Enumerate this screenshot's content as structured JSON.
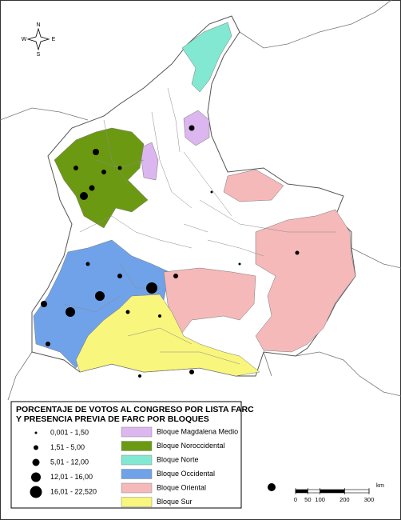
{
  "compass": {
    "north": "N",
    "south": "S",
    "east": "E",
    "west": "W"
  },
  "legend": {
    "title_lines": [
      "PORCENTAJE DE VOTOS AL CONGRESO POR LISTA FARC",
      "Y PRESENCIA PREVIA DE FARC POR BLOQUES"
    ],
    "vote_classes": [
      "0,001 - 1,50",
      "1,51 - 5,00",
      "5,01 - 12,00",
      "12,01 - 16,00",
      "16,01 - 22,520"
    ],
    "blocs": [
      {
        "name": "Bloque Magdalena Medio",
        "color": "#dcb6ef"
      },
      {
        "name": "Bloque Noroccidental",
        "color": "#6b9a12"
      },
      {
        "name": "Bloque Norte",
        "color": "#82e8d2"
      },
      {
        "name": "Bloque Occidental",
        "color": "#6fa2e8"
      },
      {
        "name": "Bloque Oriental",
        "color": "#f5b9b9"
      },
      {
        "name": "Bloque Sur",
        "color": "#f8f67c"
      }
    ]
  },
  "scale": {
    "ticks": [
      0,
      50,
      100,
      200,
      300
    ],
    "unit": "km"
  }
}
